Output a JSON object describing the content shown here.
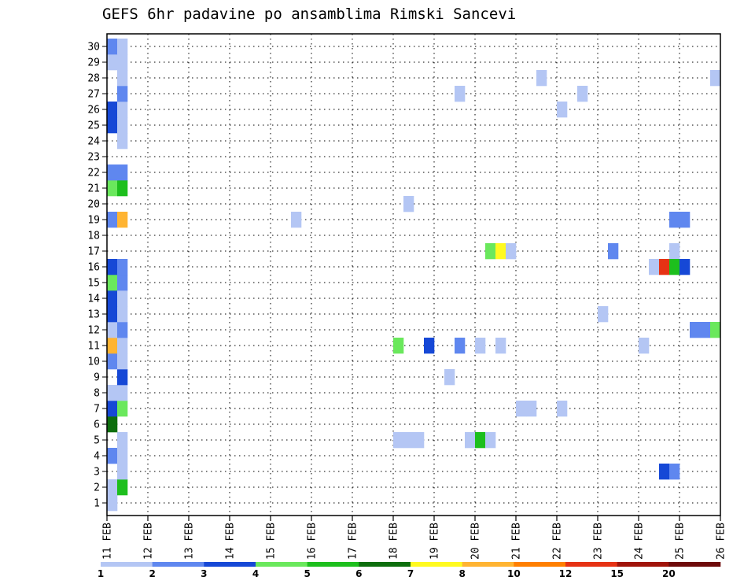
{
  "chart_data": {
    "type": "heatmap",
    "title": "GEFS 6hr padavine po ansamblima Rimski Sancevi",
    "x_axis": {
      "tick_labels": [
        "11 FEB",
        "12 FEB",
        "13 FEB",
        "14 FEB",
        "15 FEB",
        "16 FEB",
        "17 FEB",
        "18 FEB",
        "19 FEB",
        "20 FEB",
        "21 FEB",
        "22 FEB",
        "23 FEB",
        "24 FEB",
        "25 FEB",
        "26 FEB"
      ],
      "range_days": [
        0,
        15
      ],
      "step_hours": 6
    },
    "y_axis": {
      "tick_labels": [
        "1",
        "2",
        "3",
        "4",
        "5",
        "6",
        "7",
        "8",
        "9",
        "10",
        "11",
        "12",
        "13",
        "14",
        "15",
        "16",
        "17",
        "18",
        "19",
        "20",
        "21",
        "22",
        "23",
        "24",
        "25",
        "26",
        "27",
        "28",
        "29",
        "30"
      ],
      "range": [
        0.2,
        30.8
      ]
    },
    "grid": true,
    "colorbar": {
      "colors": [
        "#b4c6f4",
        "#5f87ef",
        "#1648d6",
        "#6ae85c",
        "#1dbf1d",
        "#0d6e0d",
        "#fffa20",
        "#ffb432",
        "#ff7f00",
        "#e63214",
        "#a0140a",
        "#6e0a0a"
      ],
      "labels": [
        "1",
        "2",
        "3",
        "4",
        "5",
        "6",
        "7",
        "8",
        "10",
        "12",
        "15",
        "20"
      ]
    },
    "cells": [
      {
        "m": 1,
        "s": 0,
        "c": "#b4c6f4"
      },
      {
        "m": 2,
        "s": 0,
        "c": "#b4c6f4"
      },
      {
        "m": 2,
        "s": 1,
        "c": "#1dbf1d"
      },
      {
        "m": 3,
        "s": 1,
        "c": "#b4c6f4"
      },
      {
        "m": 4,
        "s": 0,
        "c": "#5f87ef"
      },
      {
        "m": 4,
        "s": 1,
        "c": "#b4c6f4"
      },
      {
        "m": 5,
        "s": 1,
        "c": "#b4c6f4"
      },
      {
        "m": 6,
        "s": 0,
        "c": "#0d6e0d"
      },
      {
        "m": 7,
        "s": 0,
        "c": "#1648d6"
      },
      {
        "m": 7,
        "s": 1,
        "c": "#6ae85c"
      },
      {
        "m": 8,
        "s": 0,
        "c": "#b4c6f4"
      },
      {
        "m": 8,
        "s": 1,
        "c": "#b4c6f4"
      },
      {
        "m": 9,
        "s": 1,
        "c": "#1648d6"
      },
      {
        "m": 10,
        "s": 0,
        "c": "#5f87ef"
      },
      {
        "m": 10,
        "s": 1,
        "c": "#b4c6f4"
      },
      {
        "m": 11,
        "s": 0,
        "c": "#ffb432"
      },
      {
        "m": 11,
        "s": 1,
        "c": "#b4c6f4"
      },
      {
        "m": 12,
        "s": 0,
        "c": "#b4c6f4"
      },
      {
        "m": 12,
        "s": 1,
        "c": "#5f87ef"
      },
      {
        "m": 13,
        "s": 0,
        "c": "#1648d6"
      },
      {
        "m": 13,
        "s": 1,
        "c": "#b4c6f4"
      },
      {
        "m": 14,
        "s": 0,
        "c": "#1648d6"
      },
      {
        "m": 14,
        "s": 1,
        "c": "#b4c6f4"
      },
      {
        "m": 15,
        "s": 0,
        "c": "#6ae85c"
      },
      {
        "m": 15,
        "s": 1,
        "c": "#5f87ef"
      },
      {
        "m": 16,
        "s": 0,
        "c": "#1648d6"
      },
      {
        "m": 16,
        "s": 1,
        "c": "#5f87ef"
      },
      {
        "m": 19,
        "s": 0,
        "c": "#5f87ef"
      },
      {
        "m": 19,
        "s": 1,
        "c": "#ffb432"
      },
      {
        "m": 21,
        "s": 0,
        "c": "#6ae85c"
      },
      {
        "m": 21,
        "s": 1,
        "c": "#1dbf1d"
      },
      {
        "m": 22,
        "s": 0,
        "c": "#5f87ef"
      },
      {
        "m": 22,
        "s": 1,
        "c": "#5f87ef"
      },
      {
        "m": 24,
        "s": 1,
        "c": "#b4c6f4"
      },
      {
        "m": 25,
        "s": 0,
        "c": "#1648d6"
      },
      {
        "m": 25,
        "s": 1,
        "c": "#b4c6f4"
      },
      {
        "m": 26,
        "s": 0,
        "c": "#1648d6"
      },
      {
        "m": 26,
        "s": 1,
        "c": "#b4c6f4"
      },
      {
        "m": 27,
        "s": 1,
        "c": "#5f87ef"
      },
      {
        "m": 28,
        "s": 1,
        "c": "#b4c6f4"
      },
      {
        "m": 29,
        "s": 0,
        "c": "#b4c6f4"
      },
      {
        "m": 29,
        "s": 1,
        "c": "#b4c6f4"
      },
      {
        "m": 30,
        "s": 0,
        "c": "#5f87ef"
      },
      {
        "m": 30,
        "s": 1,
        "c": "#b4c6f4"
      },
      {
        "m": 28,
        "s": 42,
        "c": "#b4c6f4"
      },
      {
        "m": 27,
        "s": 34,
        "c": "#b4c6f4"
      },
      {
        "m": 27,
        "s": 46,
        "c": "#b4c6f4"
      },
      {
        "m": 26,
        "s": 44,
        "c": "#b4c6f4"
      },
      {
        "m": 28,
        "s": 59,
        "c": "#b4c6f4"
      },
      {
        "m": 20,
        "s": 29,
        "c": "#b4c6f4"
      },
      {
        "m": 19,
        "s": 18,
        "c": "#b4c6f4"
      },
      {
        "m": 19,
        "s": 55,
        "c": "#5f87ef"
      },
      {
        "m": 19,
        "s": 56,
        "c": "#5f87ef"
      },
      {
        "m": 17,
        "s": 37,
        "c": "#6ae85c"
      },
      {
        "m": 17,
        "s": 38,
        "c": "#fffa20"
      },
      {
        "m": 17,
        "s": 39,
        "c": "#b4c6f4"
      },
      {
        "m": 17,
        "s": 49,
        "c": "#5f87ef"
      },
      {
        "m": 17,
        "s": 55,
        "c": "#b4c6f4"
      },
      {
        "m": 16,
        "s": 53,
        "c": "#b4c6f4"
      },
      {
        "m": 16,
        "s": 54,
        "c": "#e63214"
      },
      {
        "m": 16,
        "s": 55,
        "c": "#1dbf1d"
      },
      {
        "m": 16,
        "s": 56,
        "c": "#1648d6"
      },
      {
        "m": 13,
        "s": 48,
        "c": "#b4c6f4"
      },
      {
        "m": 12,
        "s": 57,
        "c": "#5f87ef"
      },
      {
        "m": 12,
        "s": 58,
        "c": "#5f87ef"
      },
      {
        "m": 12,
        "s": 59,
        "c": "#6ae85c"
      },
      {
        "m": 11,
        "s": 28,
        "c": "#6ae85c"
      },
      {
        "m": 11,
        "s": 31,
        "c": "#1648d6"
      },
      {
        "m": 11,
        "s": 34,
        "c": "#5f87ef"
      },
      {
        "m": 11,
        "s": 36,
        "c": "#b4c6f4"
      },
      {
        "m": 11,
        "s": 38,
        "c": "#b4c6f4"
      },
      {
        "m": 11,
        "s": 52,
        "c": "#b4c6f4"
      },
      {
        "m": 9,
        "s": 33,
        "c": "#b4c6f4"
      },
      {
        "m": 7,
        "s": 40,
        "c": "#b4c6f4"
      },
      {
        "m": 7,
        "s": 41,
        "c": "#b4c6f4"
      },
      {
        "m": 7,
        "s": 44,
        "c": "#b4c6f4"
      },
      {
        "m": 5,
        "s": 28,
        "c": "#b4c6f4"
      },
      {
        "m": 5,
        "s": 29,
        "c": "#b4c6f4"
      },
      {
        "m": 5,
        "s": 30,
        "c": "#b4c6f4"
      },
      {
        "m": 5,
        "s": 35,
        "c": "#b4c6f4"
      },
      {
        "m": 5,
        "s": 36,
        "c": "#1dbf1d"
      },
      {
        "m": 5,
        "s": 37,
        "c": "#b4c6f4"
      },
      {
        "m": 3,
        "s": 54,
        "c": "#1648d6"
      },
      {
        "m": 3,
        "s": 55,
        "c": "#5f87ef"
      }
    ]
  }
}
